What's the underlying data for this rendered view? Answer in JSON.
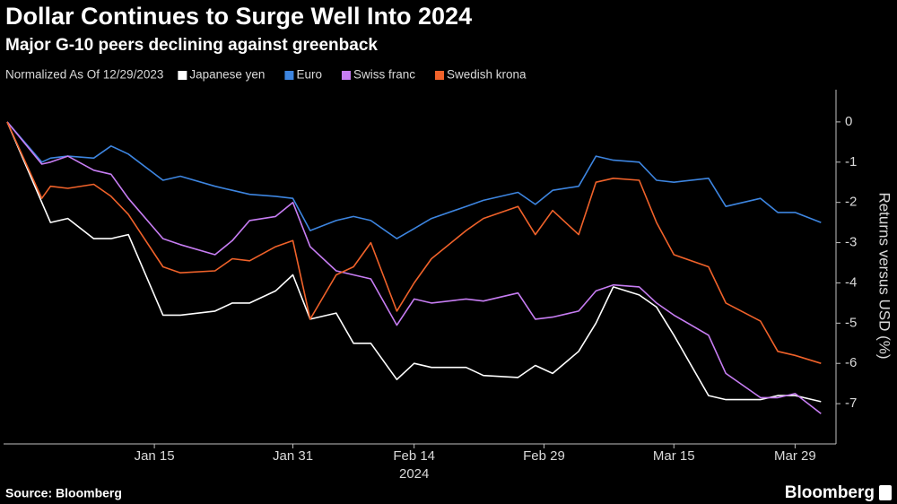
{
  "chart_data": {
    "type": "line",
    "title": "Dollar Continues to Surge Well Into 2024",
    "subtitle": "Major G-10 peers declining against greenback",
    "legend_title": "Normalized As Of 12/29/2023",
    "y_axis_label": "Returns versus USD (%)",
    "x_year_label": "2024",
    "source": "Source: Bloomberg",
    "logo": "Bloomberg",
    "x": [
      "2023-12-29",
      "2024-01-02",
      "2024-01-03",
      "2024-01-05",
      "2024-01-08",
      "2024-01-10",
      "2024-01-12",
      "2024-01-16",
      "2024-01-18",
      "2024-01-22",
      "2024-01-24",
      "2024-01-26",
      "2024-01-29",
      "2024-01-31",
      "2024-02-02",
      "2024-02-05",
      "2024-02-07",
      "2024-02-09",
      "2024-02-12",
      "2024-02-14",
      "2024-02-16",
      "2024-02-20",
      "2024-02-22",
      "2024-02-26",
      "2024-02-28",
      "2024-03-01",
      "2024-03-04",
      "2024-03-06",
      "2024-03-08",
      "2024-03-11",
      "2024-03-13",
      "2024-03-15",
      "2024-03-19",
      "2024-03-21",
      "2024-03-25",
      "2024-03-27",
      "2024-03-29",
      "2024-04-01"
    ],
    "series": [
      {
        "name": "Japanese yen",
        "color": "#ffffff",
        "values": [
          0,
          -2.0,
          -2.5,
          -2.4,
          -2.9,
          -2.9,
          -2.8,
          -4.8,
          -4.8,
          -4.7,
          -4.5,
          -4.5,
          -4.2,
          -3.8,
          -4.9,
          -4.75,
          -5.5,
          -5.5,
          -6.4,
          -6.0,
          -6.1,
          -6.1,
          -6.3,
          -6.35,
          -6.05,
          -6.25,
          -5.7,
          -5.0,
          -4.1,
          -4.3,
          -4.6,
          -5.3,
          -6.8,
          -6.9,
          -6.9,
          -6.8,
          -6.8,
          -6.95
        ]
      },
      {
        "name": "Euro",
        "color": "#3d85e0",
        "values": [
          0,
          -1.0,
          -0.9,
          -0.85,
          -0.9,
          -0.6,
          -0.8,
          -1.45,
          -1.35,
          -1.6,
          -1.7,
          -1.8,
          -1.85,
          -1.9,
          -2.7,
          -2.45,
          -2.35,
          -2.45,
          -2.9,
          -2.65,
          -2.4,
          -2.1,
          -1.95,
          -1.75,
          -2.05,
          -1.7,
          -1.6,
          -0.85,
          -0.95,
          -1.0,
          -1.45,
          -1.5,
          -1.4,
          -2.1,
          -1.9,
          -2.25,
          -2.25,
          -2.5
        ]
      },
      {
        "name": "Swiss franc",
        "color": "#c77df3",
        "values": [
          0,
          -1.05,
          -1.0,
          -0.85,
          -1.2,
          -1.3,
          -1.9,
          -2.9,
          -3.05,
          -3.3,
          -2.95,
          -2.45,
          -2.35,
          -2.0,
          -3.1,
          -3.7,
          -3.8,
          -3.9,
          -5.05,
          -4.4,
          -4.5,
          -4.4,
          -4.45,
          -4.25,
          -4.9,
          -4.85,
          -4.7,
          -4.2,
          -4.05,
          -4.1,
          -4.5,
          -4.8,
          -5.3,
          -6.25,
          -6.85,
          -6.85,
          -6.75,
          -7.25
        ]
      },
      {
        "name": "Swedish krona",
        "color": "#f0622a",
        "values": [
          0,
          -1.9,
          -1.6,
          -1.65,
          -1.55,
          -1.85,
          -2.3,
          -3.6,
          -3.75,
          -3.7,
          -3.4,
          -3.45,
          -3.1,
          -2.95,
          -4.9,
          -3.8,
          -3.6,
          -3.0,
          -4.7,
          -4.0,
          -3.4,
          -2.7,
          -2.4,
          -2.1,
          -2.8,
          -2.2,
          -2.8,
          -1.5,
          -1.4,
          -1.45,
          -2.5,
          -3.3,
          -3.6,
          -4.5,
          -4.95,
          -5.7,
          -5.8,
          -6.0
        ]
      }
    ],
    "xlim": [
      "2023-12-29",
      "2024-04-02"
    ],
    "xticks": [
      {
        "value": "2024-01-15",
        "label": "Jan 15"
      },
      {
        "value": "2024-01-31",
        "label": "Jan 31"
      },
      {
        "value": "2024-02-14",
        "label": "Feb 14"
      },
      {
        "value": "2024-02-29",
        "label": "Feb 29"
      },
      {
        "value": "2024-03-15",
        "label": "Mar 15"
      },
      {
        "value": "2024-03-29",
        "label": "Mar 29"
      }
    ],
    "ylim": [
      -8,
      0.8
    ],
    "yticks": [
      0,
      -1,
      -2,
      -3,
      -4,
      -5,
      -6,
      -7
    ],
    "y_axis_side": "right",
    "grid": false
  }
}
